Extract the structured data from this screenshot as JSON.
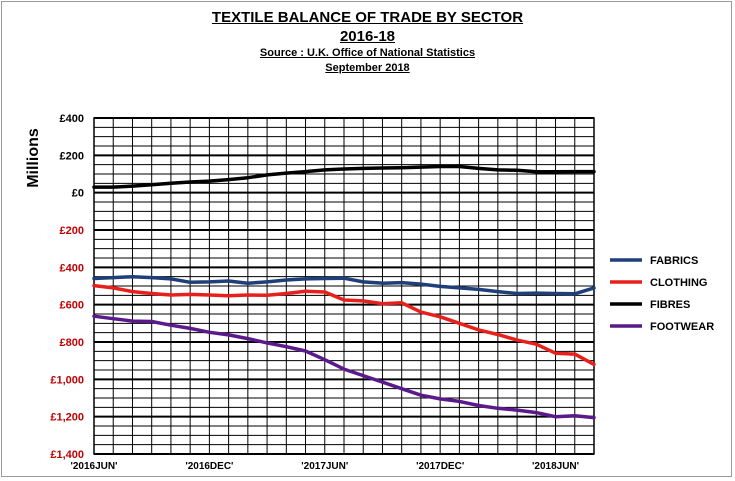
{
  "chart_data": {
    "type": "line",
    "title": "TEXTILE BALANCE OF TRADE BY SECTOR",
    "subtitle": "2016-18",
    "source": "Source : U.K. Office of National Statistics",
    "date_note": "September 2018",
    "ylabel": "Millions",
    "ylim": [
      -1400,
      400
    ],
    "y_ticks": [
      {
        "value": 400,
        "label": "£400"
      },
      {
        "value": 200,
        "label": "£200"
      },
      {
        "value": 0,
        "label": "£0"
      },
      {
        "value": -200,
        "label": "£200"
      },
      {
        "value": -400,
        "label": "£400"
      },
      {
        "value": -600,
        "label": "£600"
      },
      {
        "value": -800,
        "label": "£800"
      },
      {
        "value": -1000,
        "label": "£1,000"
      },
      {
        "value": -1200,
        "label": "£1,200"
      },
      {
        "value": -1400,
        "label": "£1,400"
      }
    ],
    "x_ticks": [
      {
        "index": 0,
        "label": "'2016JUN'"
      },
      {
        "index": 6,
        "label": "'2016DEC'"
      },
      {
        "index": 12,
        "label": "'2017JUN'"
      },
      {
        "index": 18,
        "label": "'2017DEC'"
      },
      {
        "index": 24,
        "label": "'2018JUN'"
      }
    ],
    "grid": true,
    "legend": "right",
    "series": [
      {
        "name": "FABRICS",
        "color": "#1f3f7a",
        "values": [
          -460,
          -455,
          -450,
          -455,
          -462,
          -480,
          -478,
          -473,
          -485,
          -478,
          -468,
          -462,
          -460,
          -458,
          -478,
          -485,
          -482,
          -490,
          -502,
          -510,
          -518,
          -530,
          -540,
          -538,
          -540,
          -542,
          -510
        ]
      },
      {
        "name": "CLOTHING",
        "color": "#e8201c",
        "values": [
          -498,
          -510,
          -530,
          -540,
          -548,
          -545,
          -548,
          -552,
          -548,
          -550,
          -540,
          -528,
          -532,
          -575,
          -580,
          -595,
          -590,
          -640,
          -665,
          -700,
          -735,
          -760,
          -790,
          -812,
          -860,
          -865,
          -920
        ]
      },
      {
        "name": "FIBRES",
        "color": "#000000",
        "values": [
          30,
          30,
          35,
          42,
          50,
          57,
          62,
          70,
          80,
          95,
          105,
          113,
          122,
          127,
          130,
          132,
          134,
          137,
          140,
          140,
          130,
          122,
          120,
          112,
          112,
          113,
          113
        ]
      },
      {
        "name": "FOOTWEAR",
        "color": "#5a1a8c",
        "values": [
          -662,
          -675,
          -688,
          -690,
          -710,
          -727,
          -748,
          -762,
          -782,
          -805,
          -825,
          -848,
          -895,
          -945,
          -980,
          -1015,
          -1050,
          -1085,
          -1105,
          -1118,
          -1140,
          -1155,
          -1165,
          -1178,
          -1200,
          -1195,
          -1205
        ]
      }
    ]
  }
}
